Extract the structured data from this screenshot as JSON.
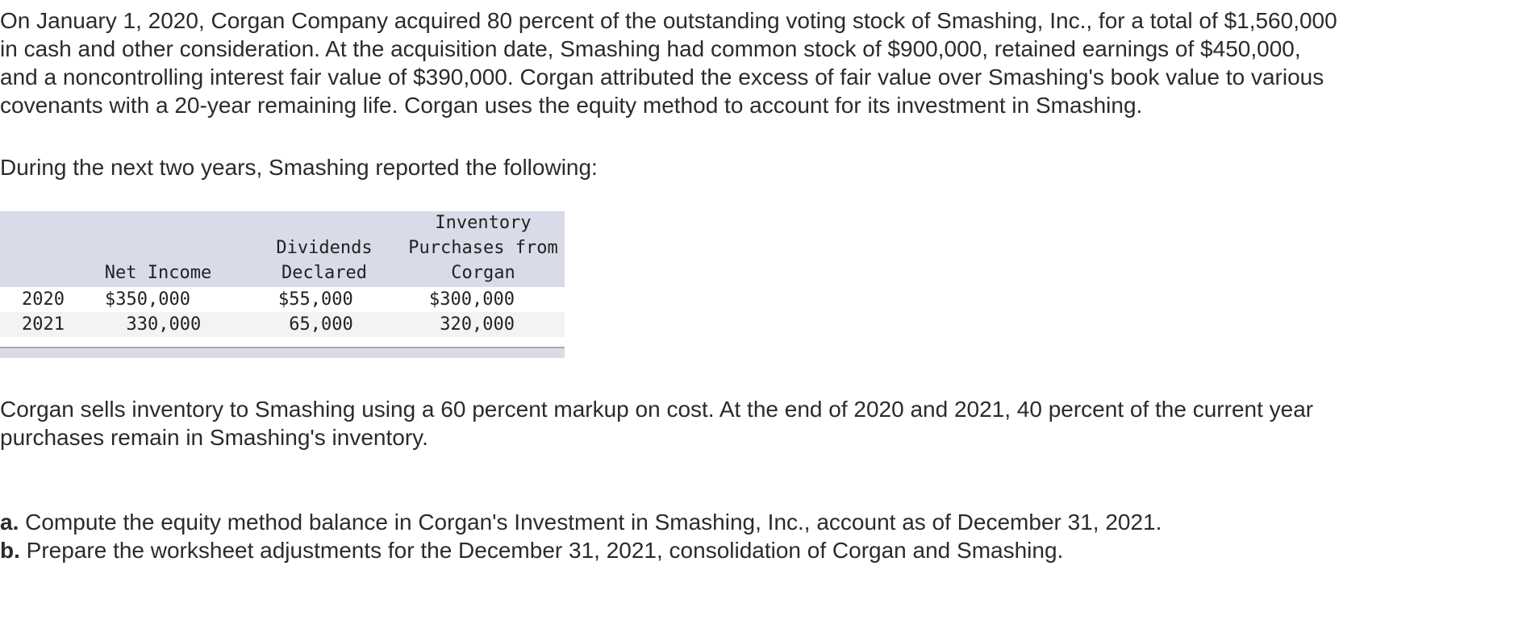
{
  "intro": "On January 1, 2020, Corgan Company acquired 80 percent of the outstanding voting stock of Smashing, Inc., for a total of $1,560,000\nin cash and other consideration. At the acquisition date, Smashing had common stock of $900,000, retained earnings of $450,000,\nand a noncontrolling interest fair value of $390,000. Corgan attributed the excess of fair value over Smashing's book value to various\ncovenants with a 20-year remaining life. Corgan uses the equity method to account for its investment in Smashing.",
  "lead": "During the next two years, Smashing reported the following:",
  "table": {
    "headers": {
      "net_income": "Net Income",
      "dividends": "Dividends\nDeclared",
      "inventory": "Inventory\nPurchases from\nCorgan"
    },
    "rows": [
      {
        "year": "2020",
        "net_income": "$350,000",
        "dividends": "$55,000",
        "inventory": "$300,000"
      },
      {
        "year": "2021",
        "net_income": "  330,000",
        "dividends": " 65,000",
        "inventory": " 320,000"
      }
    ]
  },
  "after": "Corgan sells inventory to Smashing using a 60 percent markup on cost. At the end of 2020 and 2021, 40 percent of the current year\npurchases remain in Smashing's inventory.",
  "questions": {
    "a_letter": "a.",
    "a_text": " Compute the equity method balance in Corgan's Investment in Smashing, Inc., account as of December 31, 2021.",
    "b_letter": "b.",
    "b_text": " Prepare the worksheet adjustments for the December 31, 2021, consolidation of Corgan and Smashing."
  }
}
